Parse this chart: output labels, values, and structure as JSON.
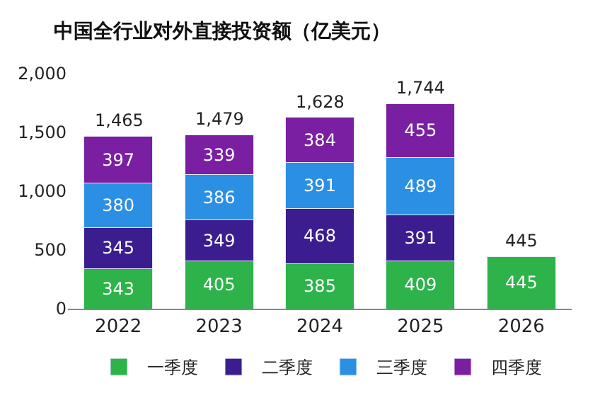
{
  "chart_data": {
    "type": "bar",
    "title": "中国全行业对外直接投资额（亿美元）",
    "categories": [
      "2022",
      "2023",
      "2024",
      "2025",
      "2026"
    ],
    "series": [
      {
        "name": "一季度",
        "color": "#2db34a",
        "values": [
          343,
          405,
          385,
          409,
          445
        ]
      },
      {
        "name": "二季度",
        "color": "#3b1d8f",
        "values": [
          345,
          349,
          468,
          391,
          null
        ]
      },
      {
        "name": "三季度",
        "color": "#2b8fe3",
        "values": [
          380,
          386,
          391,
          489,
          null
        ]
      },
      {
        "name": "四季度",
        "color": "#7a1fa2",
        "values": [
          397,
          339,
          384,
          455,
          null
        ]
      }
    ],
    "stacked": true,
    "data_labels": true,
    "totals": [
      "1,465",
      "1,479",
      "1,628",
      "1,744",
      "445"
    ],
    "ylim": [
      0,
      2000
    ],
    "yticks": [
      0,
      500,
      {
        "value": 1000,
        "label": "1,000"
      },
      {
        "value": 1500,
        "label": "1,500"
      },
      {
        "value": 2000,
        "label": "2,000"
      }
    ],
    "legend": "bottom"
  }
}
